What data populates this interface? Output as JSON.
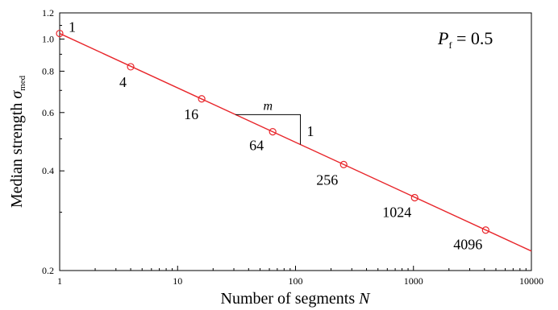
{
  "chart_data": {
    "type": "scatter",
    "x_scale": "log",
    "y_scale": "log",
    "xlabel": {
      "prefix": "Number of segments ",
      "var": "N"
    },
    "ylabel": {
      "prefix": "Median strength ",
      "var": "σ",
      "sub": "med"
    },
    "xlim": [
      1,
      10000
    ],
    "ylim": [
      0.2,
      1.2
    ],
    "x_ticks": [
      {
        "value": 1,
        "label": "1"
      },
      {
        "value": 10,
        "label": "10"
      },
      {
        "value": 100,
        "label": "100"
      },
      {
        "value": 1000,
        "label": "1000"
      },
      {
        "value": 10000,
        "label": "10000"
      }
    ],
    "y_ticks": [
      {
        "value": 0.2,
        "label": "0.2"
      },
      {
        "value": 0.4,
        "label": "0.4"
      },
      {
        "value": 0.6,
        "label": "0.6"
      },
      {
        "value": 0.8,
        "label": "0.8"
      },
      {
        "value": 1.0,
        "label": "1.0"
      },
      {
        "value": 1.2,
        "label": "1.2"
      }
    ],
    "points": [
      {
        "x": 1,
        "y": 1.04,
        "label": "1"
      },
      {
        "x": 4,
        "y": 0.825,
        "label": "4"
      },
      {
        "x": 16,
        "y": 0.66,
        "label": "16"
      },
      {
        "x": 64,
        "y": 0.525,
        "label": "64"
      },
      {
        "x": 256,
        "y": 0.418,
        "label": "256"
      },
      {
        "x": 1024,
        "y": 0.332,
        "label": "1024"
      },
      {
        "x": 4096,
        "y": 0.265,
        "label": "4096"
      }
    ],
    "fit_line": {
      "x": [
        1,
        10000
      ],
      "y": [
        1.04,
        0.229
      ],
      "color": "#e8262b"
    },
    "marker_color": "#e8262b",
    "slope_annotation": {
      "run_label": "m",
      "rise_label": "1"
    },
    "condition_label": {
      "var": "P",
      "sub": "f",
      "rest": " = 0.5"
    },
    "grid": false
  }
}
